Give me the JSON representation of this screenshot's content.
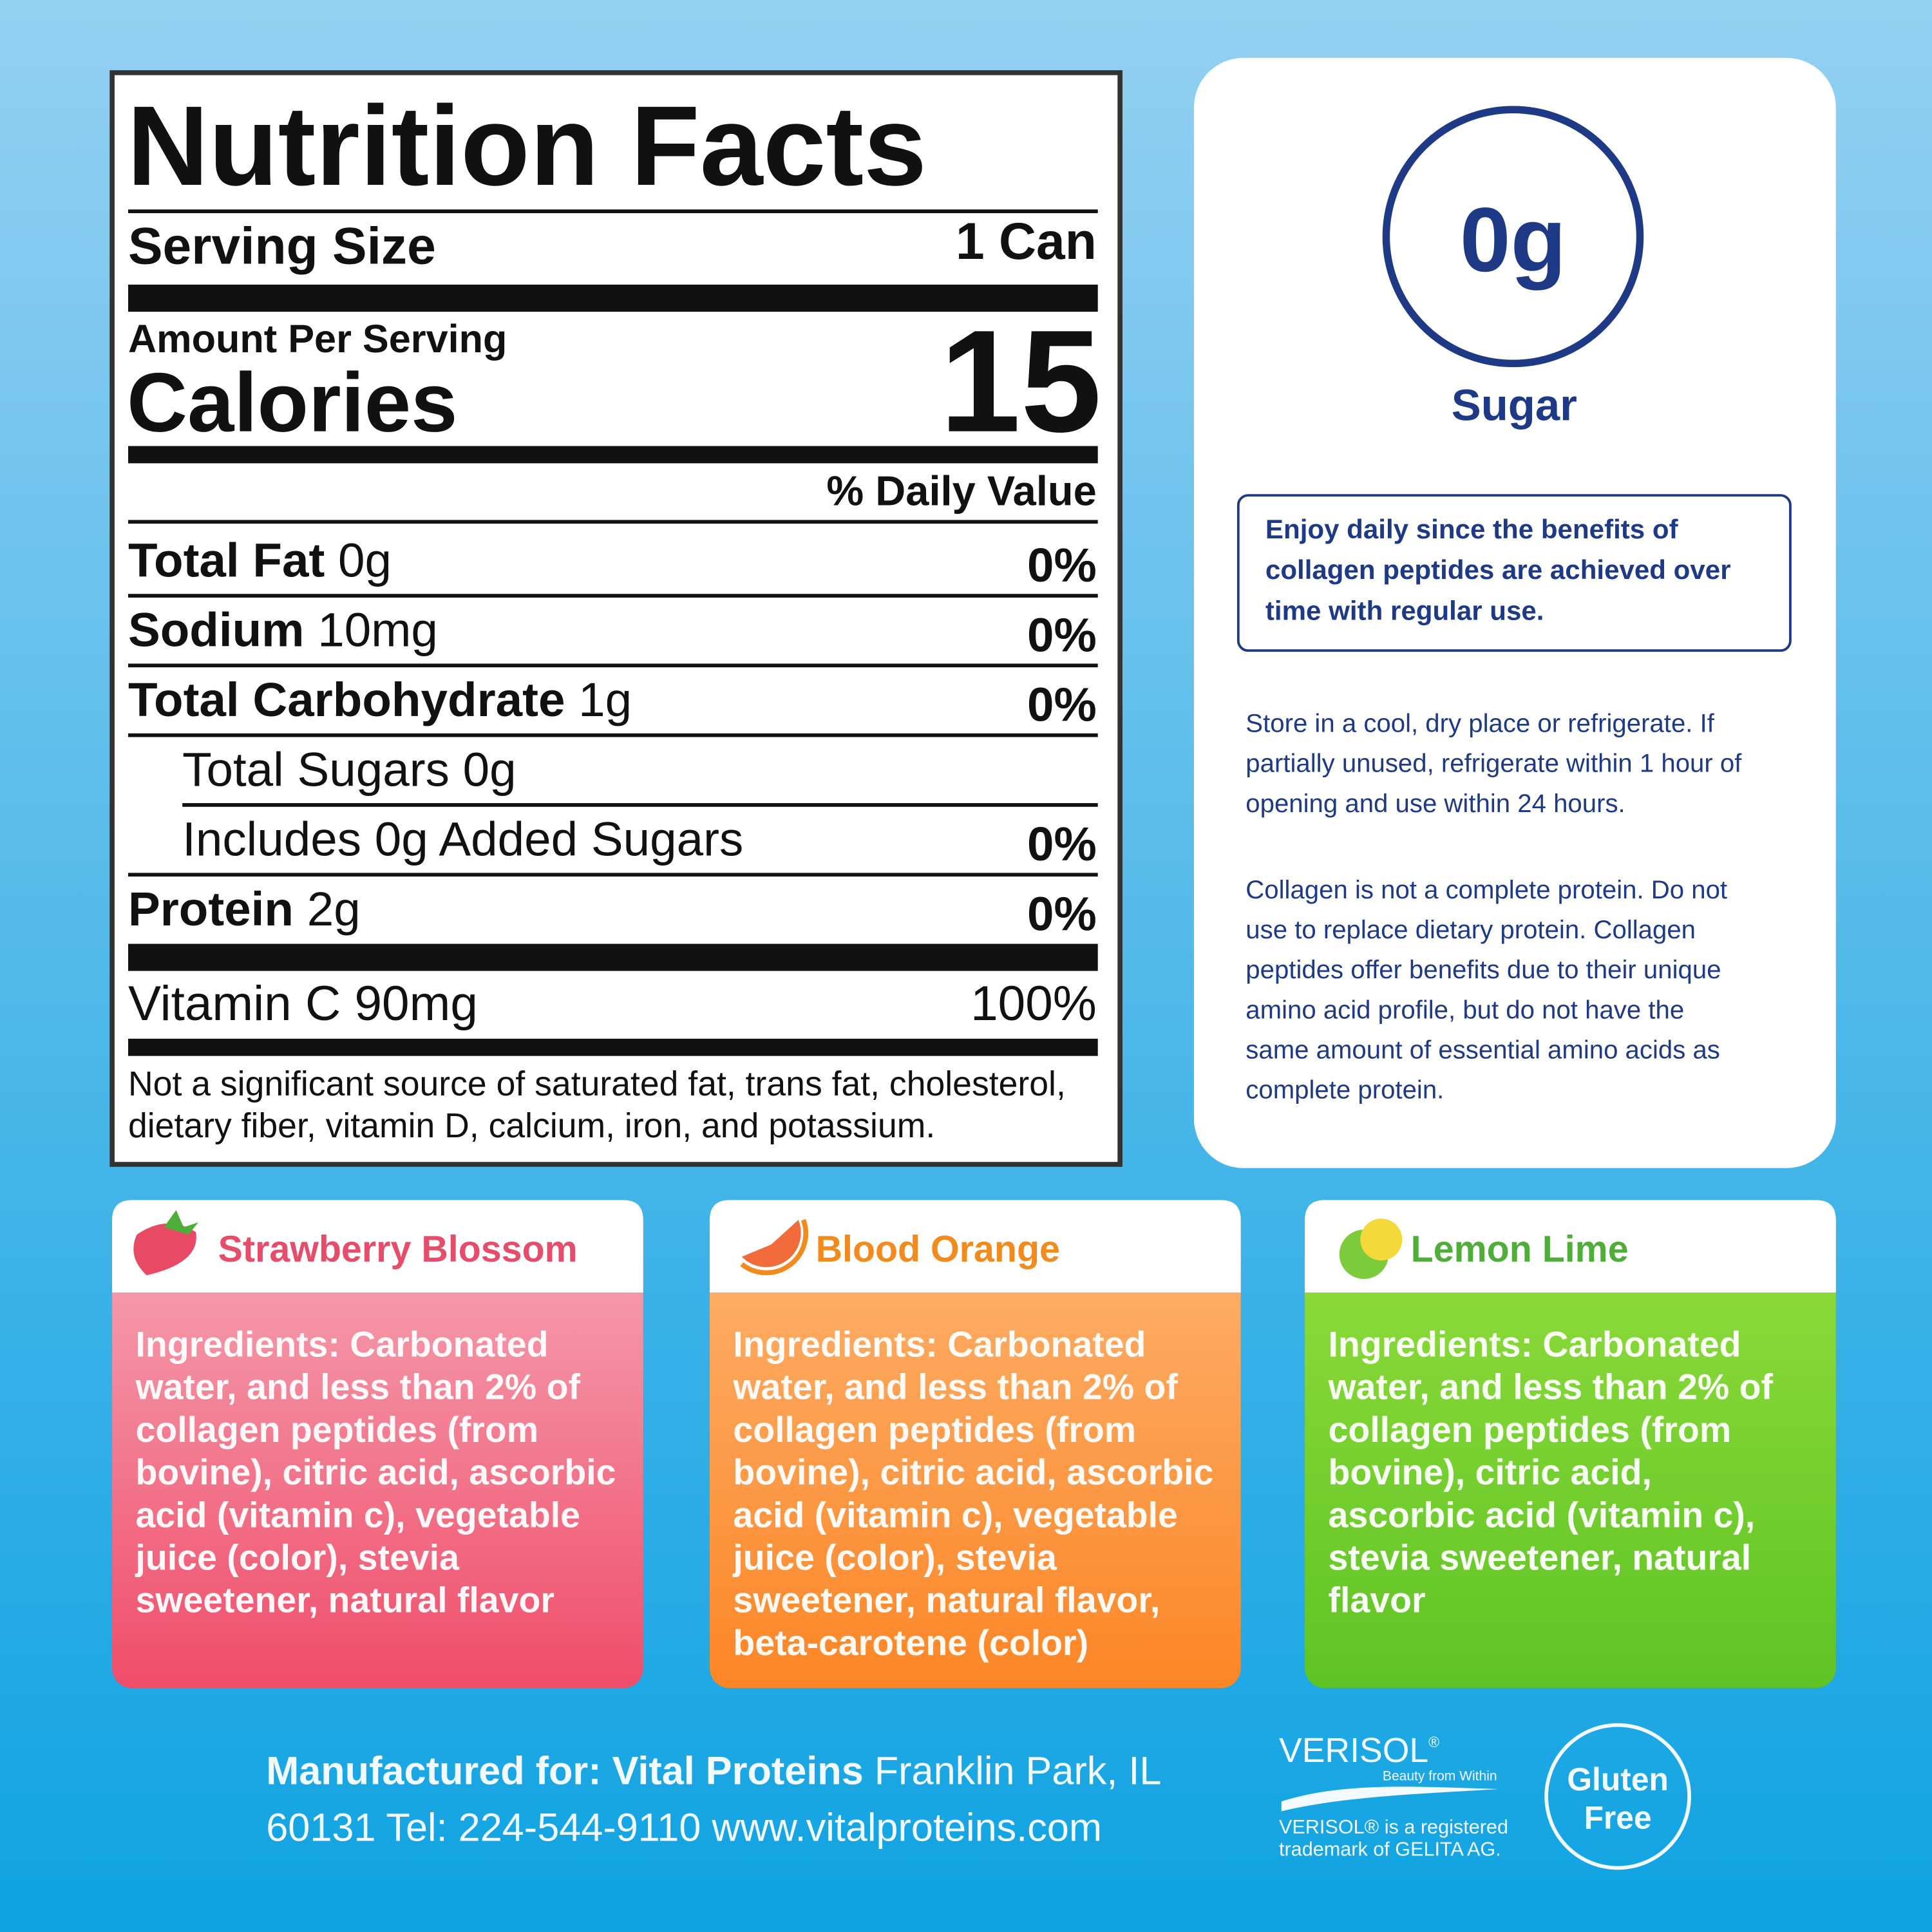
{
  "nutrition_facts": {
    "title": "Nutrition Facts",
    "serving_size_label": "Serving Size",
    "serving_size": "1 Can",
    "amount_per_serving": "Amount Per Serving",
    "calories_label": "Calories",
    "calories": 15,
    "daily_value_header": "% Daily Value",
    "rows": [
      {
        "name": "Total Fat",
        "amount": "0g",
        "dv": "0%",
        "bold": true
      },
      {
        "name": "Sodium",
        "amount": "10mg",
        "dv": "0%",
        "bold": true
      },
      {
        "name": "Total Carbohydrate",
        "amount": "1g",
        "dv": "0%",
        "bold": true
      },
      {
        "name": "Total Sugars",
        "amount": "0g",
        "bold": false,
        "indent": true
      },
      {
        "name": "Includes 0g Added Sugars",
        "dv": "0%",
        "bold": false,
        "indent": true
      },
      {
        "name": "Protein",
        "amount": "2g",
        "dv": "0%",
        "bold": true
      }
    ],
    "vitamin": {
      "name": "Vitamin C 90mg",
      "dv": "100%"
    },
    "footnote": [
      "Not a significant source of saturated fat, trans fat, cholesterol,",
      "dietary fiber, vitamin D, calcium, iron, and potassium."
    ]
  },
  "sugar_panel": {
    "amount": "0g",
    "label": "Sugar",
    "notice": [
      "Enjoy daily since the benefits of",
      "collagen peptides are achieved over",
      "time with regular use."
    ],
    "storage": [
      "Store in a cool, dry place or refrigerate. If",
      "partially unused, refrigerate within 1 hour of",
      "opening and use within 24 hours."
    ],
    "collagen_note": [
      "Collagen is not a complete protein. Do not",
      "use to replace dietary protein. Collagen",
      "peptides offer benefits due to their unique",
      "amino acid profile, but do not have the",
      "same amount of essential amino acids as",
      "complete protein."
    ]
  },
  "flavors": [
    {
      "name": "Strawberry Blossom",
      "ingredients": [
        "Ingredients: Carbonated",
        "water, and less than 2% of",
        "collagen peptides (from",
        "bovine), citric acid, ascorbic",
        "acid (vitamin c), vegetable",
        "juice (color), stevia",
        "sweetener, natural flavor"
      ]
    },
    {
      "name": "Blood Orange",
      "ingredients": [
        "Ingredients: Carbonated",
        "water, and less than 2% of",
        "collagen peptides (from",
        "bovine), citric acid, ascorbic",
        "acid (vitamin c), vegetable",
        "juice (color), stevia",
        "sweetener, natural flavor,",
        "beta-carotene (color)"
      ]
    },
    {
      "name": "Lemon Lime",
      "ingredients": [
        "Ingredients: Carbonated",
        "water, and less than 2% of",
        "collagen peptides (from",
        "bovine), citric acid,",
        "ascorbic acid (vitamin c),",
        "stevia sweetener, natural",
        "flavor"
      ]
    }
  ],
  "footer": {
    "manufacturer_label": "Manufactured for: Vital Proteins",
    "address_line1": "Franklin Park, IL",
    "address_line2": "60131 Tel: 224-544-9110 www.vitalproteins.com",
    "verisol": {
      "logo": "VERISOL",
      "registered": "®",
      "tagline": "Beauty from Within",
      "trademark": [
        "VERISOL® is a registered",
        "trademark of GELITA AG."
      ]
    },
    "badge": [
      "Gluten",
      "Free"
    ]
  }
}
